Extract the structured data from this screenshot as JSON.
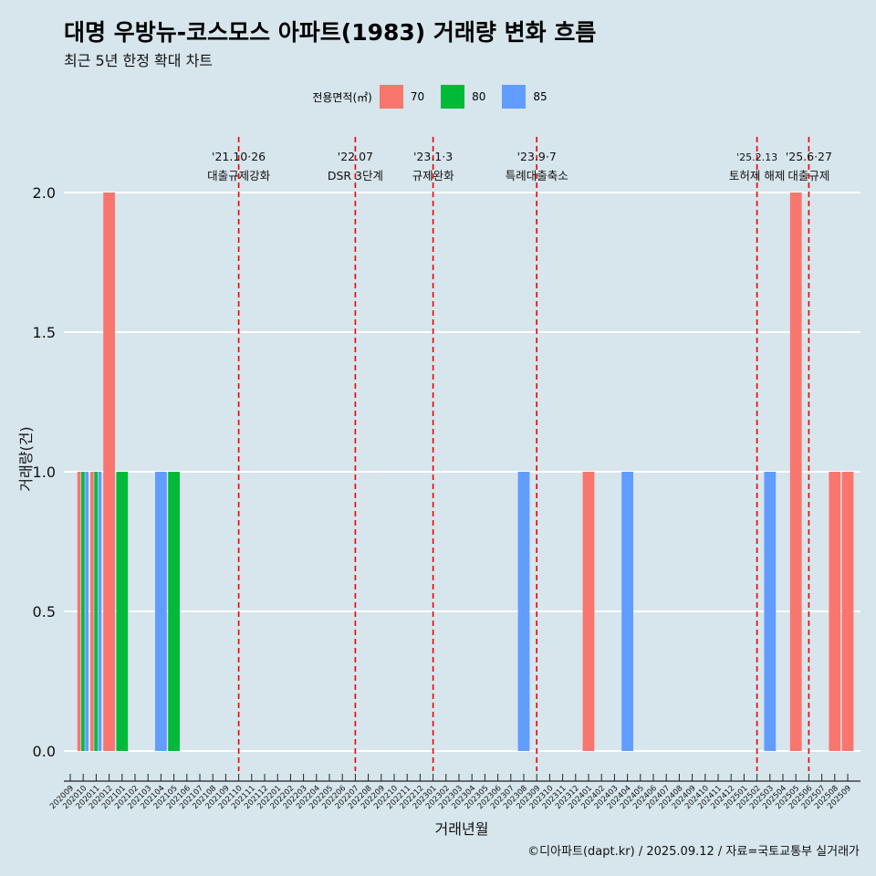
{
  "title": "대명 우방뉴-코스모스 아파트(1983) 거래량 변화 흐름",
  "subtitle": "최근 5년 한정 확대 차트",
  "caption": "©디아파트(dapt.kr) / 2025.09.12 / 자료=국토교통부 실거래가",
  "legend": {
    "title": "전용면적(㎡)",
    "items": [
      {
        "label": "70",
        "color": "#F8766D"
      },
      {
        "label": "80",
        "color": "#00BA38"
      },
      {
        "label": "85",
        "color": "#619CFF"
      }
    ]
  },
  "chart_data": {
    "type": "bar",
    "xlabel": "거래년월",
    "ylabel": "거래량(건)",
    "ylim": [
      0,
      2
    ],
    "yticks": [
      "0.0",
      "0.5",
      "1.0",
      "1.5",
      "2.0"
    ],
    "categories": [
      "202009",
      "202010",
      "202011",
      "202012",
      "202101",
      "202102",
      "202103",
      "202104",
      "202105",
      "202106",
      "202107",
      "202108",
      "202109",
      "202110",
      "202111",
      "202112",
      "202201",
      "202202",
      "202203",
      "202204",
      "202205",
      "202206",
      "202207",
      "202208",
      "202209",
      "202210",
      "202211",
      "202212",
      "202301",
      "202302",
      "202303",
      "202304",
      "202305",
      "202306",
      "202307",
      "202308",
      "202309",
      "202310",
      "202311",
      "202312",
      "202401",
      "202402",
      "202403",
      "202404",
      "202405",
      "202406",
      "202407",
      "202408",
      "202409",
      "202410",
      "202411",
      "202412",
      "202501",
      "202502",
      "202503",
      "202504",
      "202505",
      "202506",
      "202507",
      "202508",
      "202509"
    ],
    "series": [
      {
        "name": "70",
        "color": "#F8766D",
        "values": {
          "202010": 1,
          "202011": 1,
          "202012": 2,
          "202401": 1,
          "202505": 2,
          "202508": 1,
          "202509": 1
        }
      },
      {
        "name": "80",
        "color": "#00BA38",
        "values": {
          "202010": 1,
          "202011": 1,
          "202101": 1,
          "202105": 1
        }
      },
      {
        "name": "85",
        "color": "#619CFF",
        "values": {
          "202010": 1,
          "202011": 1,
          "202104": 1,
          "202308": 1,
          "202404": 1,
          "202503": 1
        }
      }
    ],
    "events": [
      {
        "month": "202110",
        "date": "'21.10·26",
        "label": "대출규제강화"
      },
      {
        "month": "202207",
        "date": "'22.07",
        "label": "DSR 3단계"
      },
      {
        "month": "202301",
        "date": "'23.1·3",
        "label": "규제완화"
      },
      {
        "month": "202309",
        "date": "'23.9·7",
        "label": "특례대출축소"
      },
      {
        "month": "202502",
        "date": "'25.2.13",
        "label": "토허제 해제"
      },
      {
        "month": "202506",
        "date": "'25.6·27",
        "label": "대출규제"
      }
    ]
  }
}
